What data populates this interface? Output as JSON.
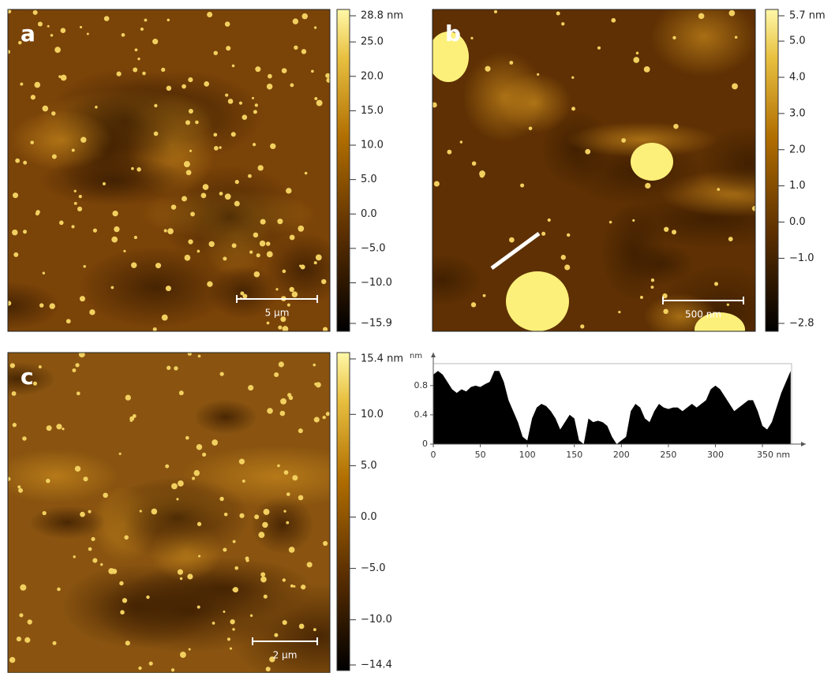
{
  "panels": [
    {
      "label": "a",
      "scale_bar": "5 µm",
      "clim": [
        -15.9,
        28.8
      ],
      "ticks": [
        {
          "value": 28.8,
          "label": "28.8 nm"
        },
        {
          "value": 25,
          "label": "25.0"
        },
        {
          "value": 20,
          "label": "20.0"
        },
        {
          "value": 15,
          "label": "15.0"
        },
        {
          "value": 10,
          "label": "10.0"
        },
        {
          "value": 5,
          "label": "5.0"
        },
        {
          "value": 0,
          "label": "0.0"
        },
        {
          "value": -5,
          "label": "−5.0"
        },
        {
          "value": -10,
          "label": "−10.0"
        },
        {
          "value": -15.9,
          "label": "−15.9"
        }
      ]
    },
    {
      "label": "b",
      "scale_bar": "500 nm",
      "clim": [
        -2.8,
        5.7
      ],
      "ticks": [
        {
          "value": 5.7,
          "label": "5.7 nm"
        },
        {
          "value": 5,
          "label": "5.0"
        },
        {
          "value": 4,
          "label": "4.0"
        },
        {
          "value": 3,
          "label": "3.0"
        },
        {
          "value": 2,
          "label": "2.0"
        },
        {
          "value": 1,
          "label": "1.0"
        },
        {
          "value": 0,
          "label": "0.0"
        },
        {
          "value": -1,
          "label": "−1.0"
        },
        {
          "value": -2.8,
          "label": "−2.8"
        }
      ]
    },
    {
      "label": "c",
      "scale_bar": "2 µm",
      "clim": [
        -14.4,
        15.4
      ],
      "ticks": [
        {
          "value": 15.4,
          "label": "15.4 nm"
        },
        {
          "value": 10,
          "label": "10.0"
        },
        {
          "value": 5,
          "label": "5.0"
        },
        {
          "value": 0,
          "label": "0.0"
        },
        {
          "value": -5,
          "label": "−5.0"
        },
        {
          "value": -10,
          "label": "−10.0"
        },
        {
          "value": -14.4,
          "label": "−14.4"
        }
      ]
    }
  ],
  "chart_data": {
    "type": "area",
    "y_label": "nm",
    "x": [
      0,
      5,
      10,
      15,
      20,
      25,
      30,
      35,
      40,
      45,
      50,
      55,
      60,
      65,
      70,
      75,
      80,
      85,
      90,
      95,
      100,
      105,
      110,
      115,
      120,
      125,
      130,
      135,
      140,
      145,
      150,
      155,
      160,
      165,
      170,
      175,
      180,
      185,
      190,
      195,
      200,
      205,
      210,
      215,
      220,
      225,
      230,
      235,
      240,
      245,
      250,
      255,
      260,
      265,
      270,
      275,
      280,
      285,
      290,
      295,
      300,
      305,
      310,
      315,
      320,
      325,
      330,
      335,
      340,
      345,
      350,
      355,
      360,
      365,
      370,
      375,
      380
    ],
    "values": [
      0.95,
      1.0,
      0.95,
      0.85,
      0.75,
      0.7,
      0.75,
      0.72,
      0.78,
      0.8,
      0.78,
      0.82,
      0.85,
      1.0,
      1.0,
      0.85,
      0.6,
      0.45,
      0.3,
      0.1,
      0.05,
      0.35,
      0.5,
      0.55,
      0.52,
      0.45,
      0.35,
      0.2,
      0.3,
      0.4,
      0.35,
      0.05,
      0.0,
      0.35,
      0.3,
      0.32,
      0.3,
      0.25,
      0.1,
      0.0,
      0.05,
      0.1,
      0.45,
      0.55,
      0.5,
      0.35,
      0.3,
      0.45,
      0.55,
      0.5,
      0.48,
      0.5,
      0.5,
      0.45,
      0.5,
      0.55,
      0.5,
      0.55,
      0.6,
      0.75,
      0.8,
      0.75,
      0.65,
      0.55,
      0.45,
      0.5,
      0.55,
      0.6,
      0.6,
      0.45,
      0.25,
      0.2,
      0.3,
      0.5,
      0.7,
      0.85,
      1.0
    ],
    "color": "#000000",
    "xlim": [
      0,
      381
    ],
    "ylim": [
      0,
      1.1
    ],
    "xticks": [
      0,
      50,
      100,
      150,
      200,
      250,
      300,
      {
        "value": 350,
        "label": "350 nm"
      }
    ],
    "yticks": [
      0,
      0.4,
      0.8
    ]
  }
}
